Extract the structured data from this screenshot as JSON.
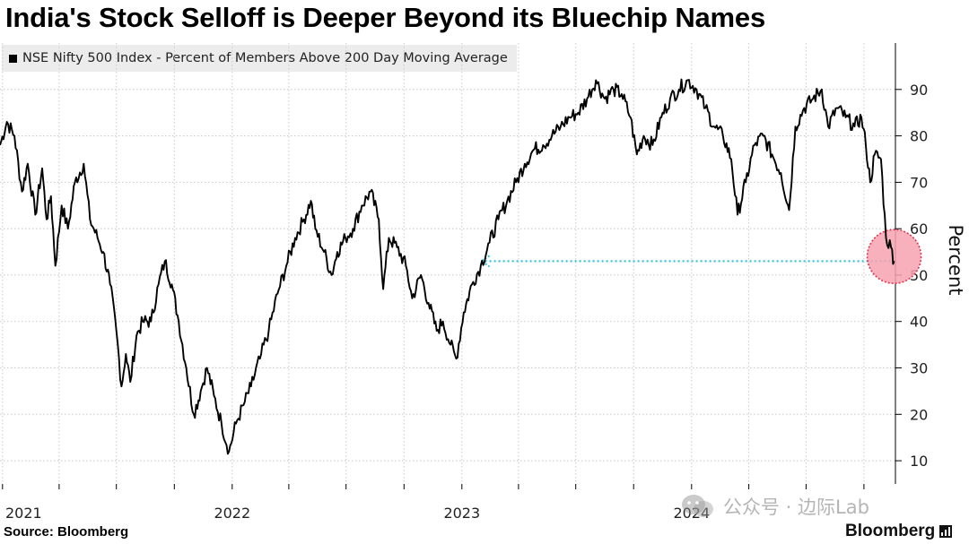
{
  "header": {
    "title": "India's Stock Selloff is Deeper Beyond its Bluechip Names"
  },
  "footer": {
    "source": "Source: Bloomberg",
    "brand": "Bloomberg",
    "watermark": "公众号 · 边际Lab"
  },
  "colors": {
    "line": "#000000",
    "arrow": "#33c4d6",
    "highlight_fill": "#f7a3b0",
    "highlight_stroke": "#e0334d",
    "grid": "#c8c8c8"
  },
  "chart_data": {
    "type": "line",
    "title": "India's Stock Selloff is Deeper Beyond its Bluechip Names",
    "ylabel": "Percent",
    "xlabel": "",
    "ylim": [
      5,
      100
    ],
    "xlim": [
      "2020-12-28",
      "2024-11-20"
    ],
    "yticks": [
      10,
      20,
      30,
      40,
      50,
      60,
      70,
      80,
      90
    ],
    "xtick_labels": [
      {
        "label": "2021",
        "date": "2021-01-01"
      },
      {
        "label": "2022",
        "date": "2022-01-01"
      },
      {
        "label": "2023",
        "date": "2023-01-01"
      },
      {
        "label": "2024",
        "date": "2024-01-01"
      }
    ],
    "grid": true,
    "legend": "top-left",
    "series": [
      {
        "name": "NSE Nifty 500 Index - Percent of Members Above 200 Day Moving Average",
        "points": [
          [
            "2020-12-28",
            78
          ],
          [
            "2021-01-08",
            83
          ],
          [
            "2021-01-20",
            80
          ],
          [
            "2021-02-01",
            68
          ],
          [
            "2021-02-10",
            74
          ],
          [
            "2021-02-22",
            63
          ],
          [
            "2021-03-05",
            73
          ],
          [
            "2021-03-12",
            62
          ],
          [
            "2021-03-19",
            67
          ],
          [
            "2021-03-26",
            52
          ],
          [
            "2021-04-05",
            65
          ],
          [
            "2021-04-15",
            60
          ],
          [
            "2021-04-26",
            70
          ],
          [
            "2021-05-10",
            74
          ],
          [
            "2021-05-20",
            62
          ],
          [
            "2021-06-01",
            58
          ],
          [
            "2021-06-10",
            55
          ],
          [
            "2021-06-21",
            48
          ],
          [
            "2021-07-01",
            38
          ],
          [
            "2021-07-09",
            26
          ],
          [
            "2021-07-16",
            33
          ],
          [
            "2021-07-23",
            27
          ],
          [
            "2021-08-02",
            37
          ],
          [
            "2021-08-12",
            40
          ],
          [
            "2021-08-25",
            40
          ],
          [
            "2021-09-06",
            48
          ],
          [
            "2021-09-16",
            53
          ],
          [
            "2021-09-27",
            48
          ],
          [
            "2021-10-08",
            40
          ],
          [
            "2021-10-20",
            30
          ],
          [
            "2021-11-01",
            20
          ],
          [
            "2021-11-12",
            25
          ],
          [
            "2021-11-22",
            30
          ],
          [
            "2021-12-03",
            24
          ],
          [
            "2021-12-15",
            18
          ],
          [
            "2021-12-27",
            12
          ],
          [
            "2022-01-07",
            18
          ],
          [
            "2022-01-19",
            22
          ],
          [
            "2022-01-31",
            26
          ],
          [
            "2022-02-14",
            32
          ],
          [
            "2022-02-28",
            38
          ],
          [
            "2022-03-14",
            46
          ],
          [
            "2022-03-28",
            52
          ],
          [
            "2022-04-11",
            58
          ],
          [
            "2022-04-25",
            62
          ],
          [
            "2022-05-06",
            66
          ],
          [
            "2022-05-13",
            60
          ],
          [
            "2022-05-27",
            55
          ],
          [
            "2022-06-08",
            50
          ],
          [
            "2022-06-17",
            55
          ],
          [
            "2022-06-30",
            58
          ],
          [
            "2022-07-12",
            60
          ],
          [
            "2022-07-26",
            65
          ],
          [
            "2022-08-09",
            68
          ],
          [
            "2022-08-22",
            62
          ],
          [
            "2022-08-29",
            47
          ],
          [
            "2022-09-07",
            58
          ],
          [
            "2022-09-20",
            56
          ],
          [
            "2022-10-04",
            52
          ],
          [
            "2022-10-14",
            45
          ],
          [
            "2022-10-28",
            50
          ],
          [
            "2022-11-09",
            44
          ],
          [
            "2022-11-22",
            38
          ],
          [
            "2022-12-02",
            40
          ],
          [
            "2022-12-14",
            35
          ],
          [
            "2022-12-23",
            32
          ],
          [
            "2023-01-04",
            42
          ],
          [
            "2023-01-17",
            48
          ],
          [
            "2023-01-31",
            52
          ],
          [
            "2023-02-14",
            57
          ],
          [
            "2023-02-28",
            62
          ],
          [
            "2023-03-14",
            66
          ],
          [
            "2023-03-28",
            70
          ],
          [
            "2023-04-11",
            74
          ],
          [
            "2023-04-25",
            77
          ],
          [
            "2023-05-10",
            78
          ],
          [
            "2023-05-24",
            80
          ],
          [
            "2023-06-07",
            82
          ],
          [
            "2023-06-21",
            84
          ],
          [
            "2023-07-05",
            85
          ],
          [
            "2023-07-19",
            88
          ],
          [
            "2023-08-02",
            92
          ],
          [
            "2023-08-16",
            88
          ],
          [
            "2023-08-30",
            90
          ],
          [
            "2023-09-12",
            89
          ],
          [
            "2023-09-26",
            84
          ],
          [
            "2023-10-06",
            76
          ],
          [
            "2023-10-17",
            80
          ],
          [
            "2023-10-31",
            78
          ],
          [
            "2023-11-14",
            84
          ],
          [
            "2023-11-28",
            88
          ],
          [
            "2023-12-12",
            90
          ],
          [
            "2023-12-26",
            92
          ],
          [
            "2024-01-09",
            90
          ],
          [
            "2024-01-23",
            86
          ],
          [
            "2024-02-06",
            82
          ],
          [
            "2024-02-20",
            80
          ],
          [
            "2024-03-04",
            75
          ],
          [
            "2024-03-14",
            63
          ],
          [
            "2024-03-27",
            70
          ],
          [
            "2024-04-10",
            78
          ],
          [
            "2024-04-24",
            80
          ],
          [
            "2024-05-08",
            76
          ],
          [
            "2024-05-22",
            72
          ],
          [
            "2024-06-04",
            64
          ],
          [
            "2024-06-14",
            82
          ],
          [
            "2024-06-28",
            86
          ],
          [
            "2024-07-12",
            88
          ],
          [
            "2024-07-26",
            90
          ],
          [
            "2024-08-05",
            82
          ],
          [
            "2024-08-19",
            86
          ],
          [
            "2024-09-02",
            84
          ],
          [
            "2024-09-16",
            82
          ],
          [
            "2024-09-27",
            84
          ],
          [
            "2024-10-04",
            78
          ],
          [
            "2024-10-11",
            70
          ],
          [
            "2024-10-18",
            76
          ],
          [
            "2024-10-28",
            75
          ],
          [
            "2024-11-05",
            58
          ],
          [
            "2024-11-13",
            56
          ],
          [
            "2024-11-18",
            53
          ]
        ]
      }
    ],
    "annotations": [
      {
        "type": "arrow",
        "from": [
          "2024-11-18",
          53
        ],
        "to": [
          "2023-02-01",
          53
        ],
        "style": "dotted"
      },
      {
        "type": "circle",
        "at": [
          "2024-11-18",
          54
        ]
      }
    ]
  }
}
